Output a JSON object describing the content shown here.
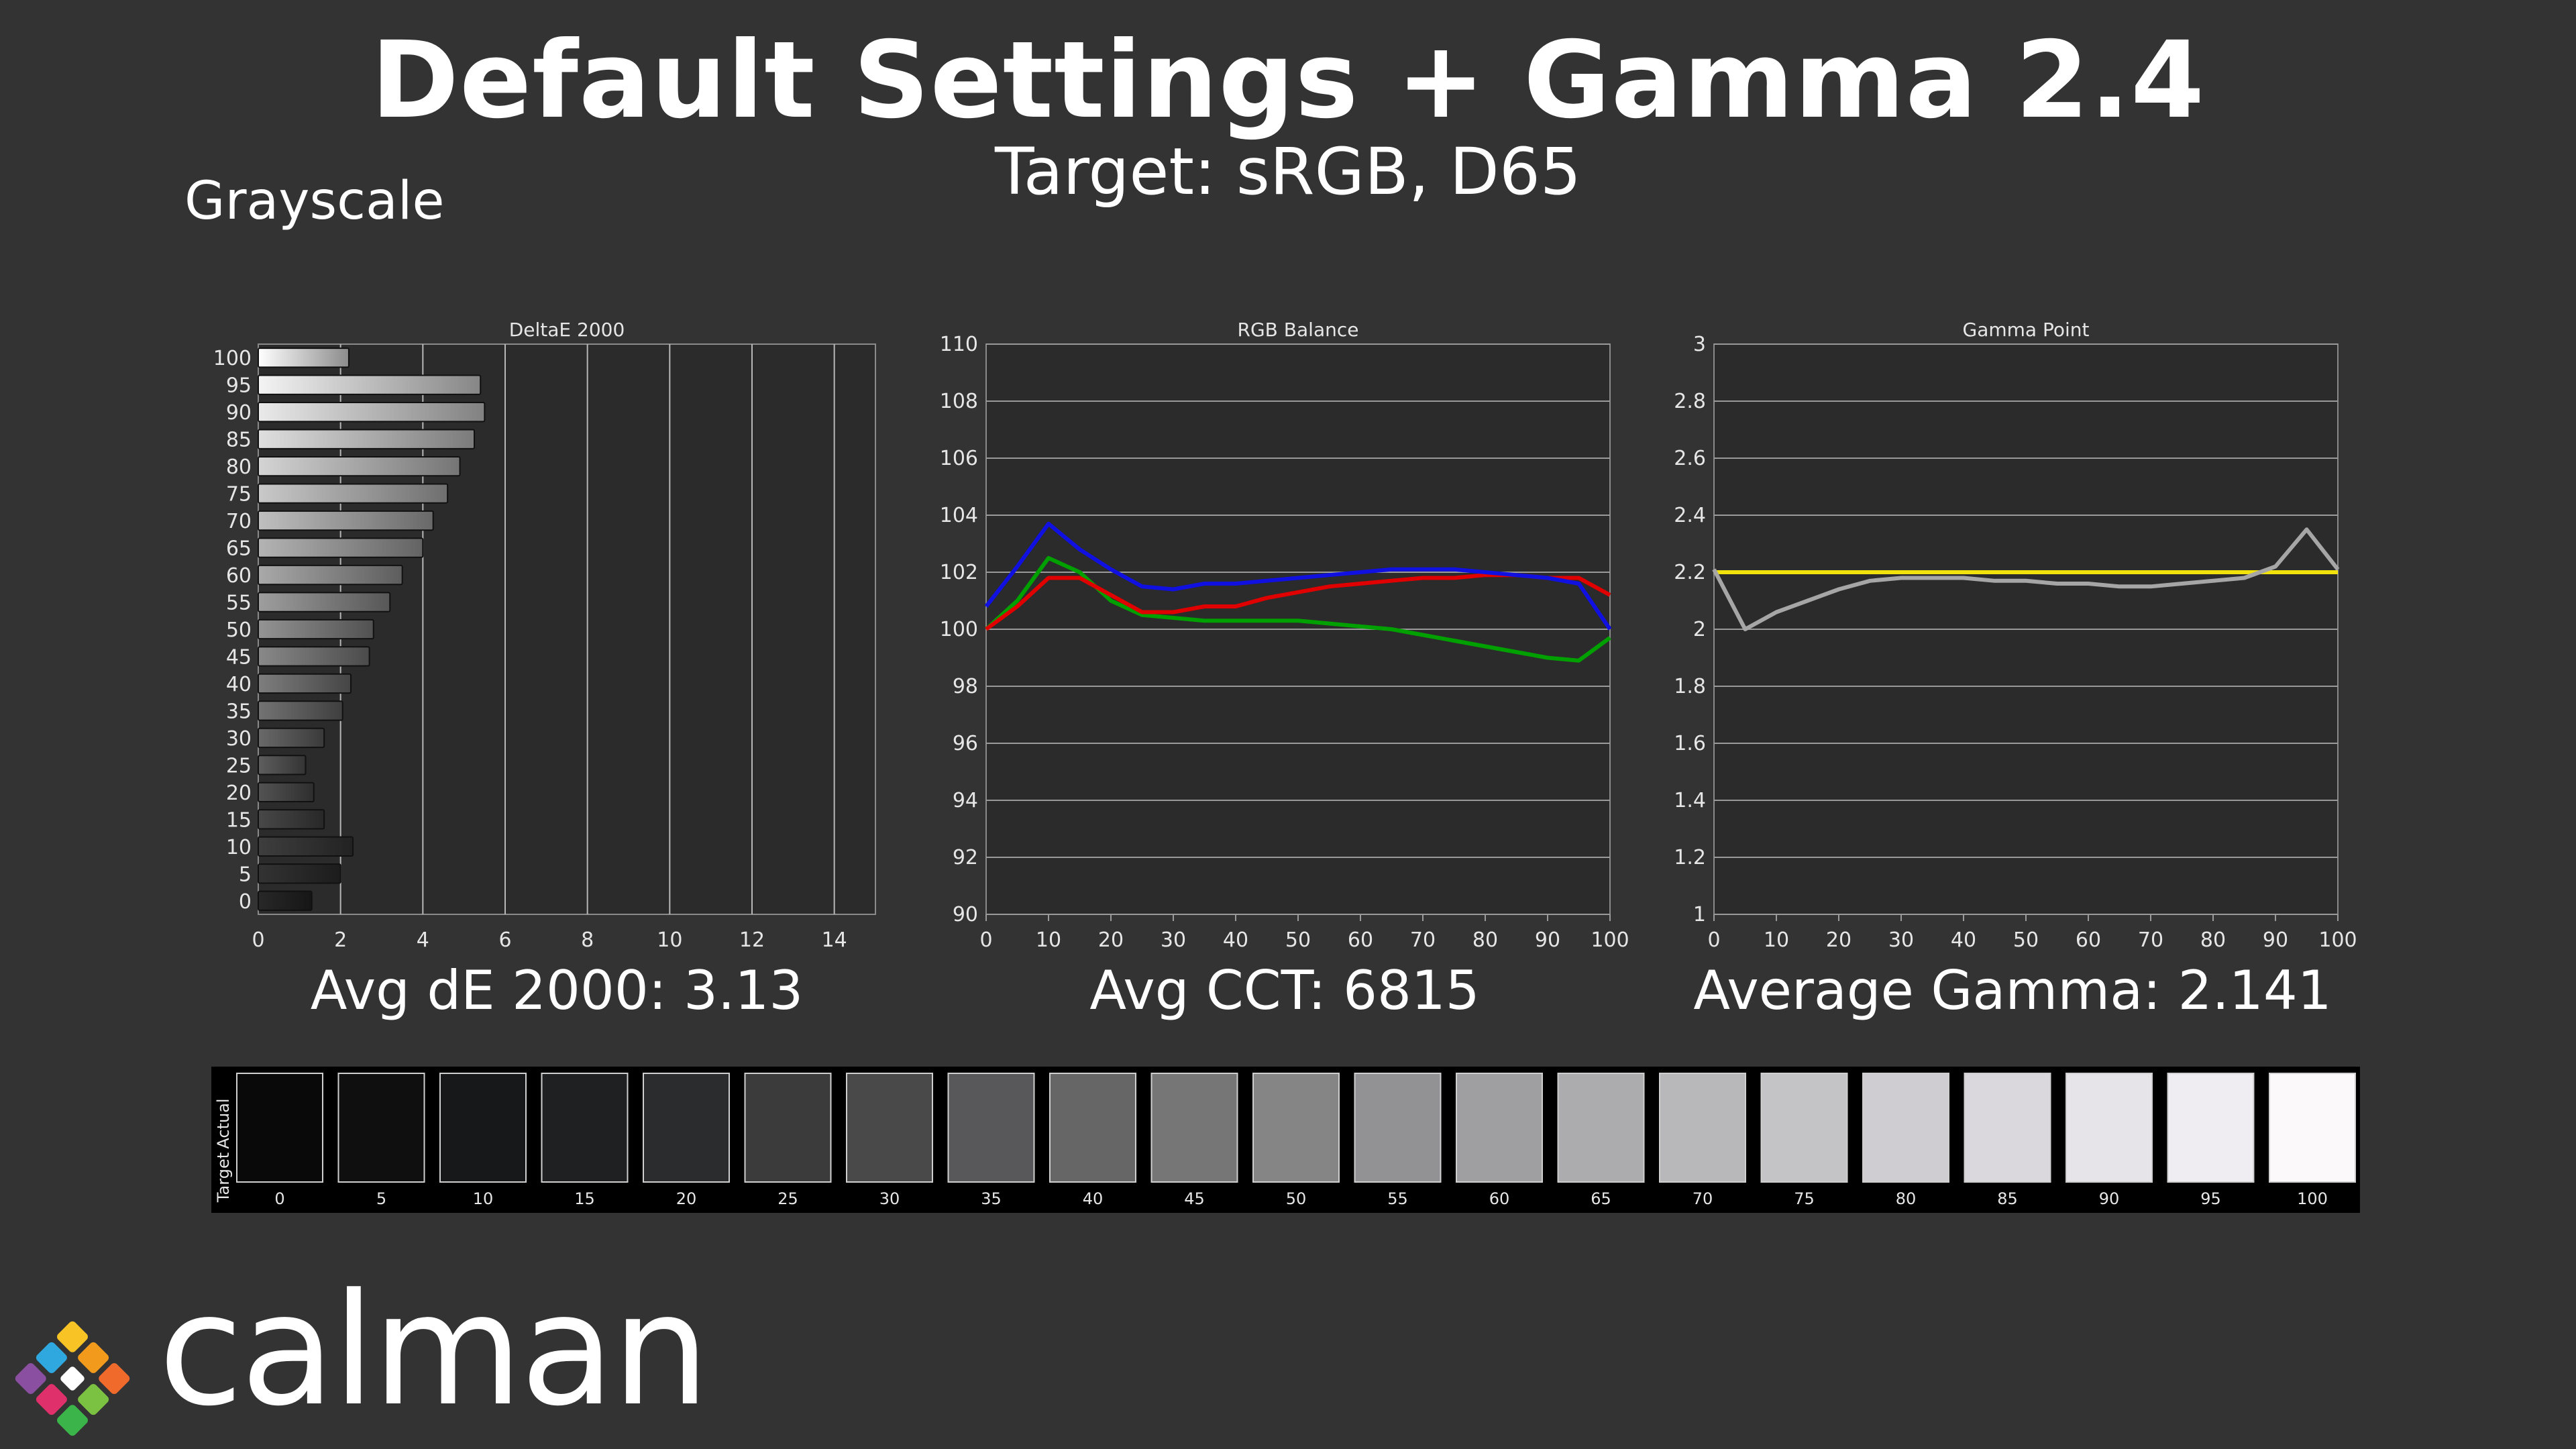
{
  "header": {
    "title": "Default Settings + Gamma 2.4",
    "subtitle": "Target: sRGB, D65",
    "section": "Grayscale"
  },
  "stats": {
    "avg_de": "Avg dE 2000: 3.13",
    "avg_cct": "Avg CCT: 6815",
    "avg_gamma": "Average Gamma: 2.141"
  },
  "brand": {
    "name": "calman"
  },
  "swatches": {
    "actual_label": "Actual",
    "target_label": "Target",
    "levels": [
      "0",
      "5",
      "10",
      "15",
      "20",
      "25",
      "30",
      "35",
      "40",
      "45",
      "50",
      "55",
      "60",
      "65",
      "70",
      "75",
      "80",
      "85",
      "90",
      "95",
      "100"
    ],
    "colors": [
      "#0a090a",
      "#0f0f10",
      "#17181a",
      "#1f2022",
      "#2b2c2e",
      "#3b3b3c",
      "#49494a",
      "#58585a",
      "#666667",
      "#767677",
      "#858586",
      "#929294",
      "#9f9fa1",
      "#acabae",
      "#b8b7ba",
      "#c4c3c6",
      "#cfcdd1",
      "#dad8dc",
      "#e6e3e9",
      "#efecf2",
      "#fbf9fa"
    ]
  },
  "chart_data": [
    {
      "type": "bar",
      "orientation": "horizontal",
      "title": "DeltaE 2000",
      "categories": [
        "0",
        "5",
        "10",
        "15",
        "20",
        "25",
        "30",
        "35",
        "40",
        "45",
        "50",
        "55",
        "60",
        "65",
        "70",
        "75",
        "80",
        "85",
        "90",
        "95",
        "100"
      ],
      "values": [
        1.3,
        2.0,
        2.3,
        1.6,
        1.35,
        1.15,
        1.6,
        2.05,
        2.25,
        2.7,
        2.8,
        3.2,
        3.5,
        4.0,
        4.25,
        4.6,
        4.9,
        5.25,
        5.5,
        5.4,
        2.2
      ],
      "x_ticks": [
        "0",
        "2",
        "4",
        "6",
        "8",
        "10",
        "12",
        "14"
      ],
      "xlim": [
        0,
        15
      ],
      "grid": true
    },
    {
      "type": "line",
      "title": "RGB Balance",
      "x": [
        0,
        5,
        10,
        15,
        20,
        25,
        30,
        35,
        40,
        45,
        50,
        55,
        60,
        65,
        70,
        75,
        80,
        85,
        90,
        95,
        100
      ],
      "x_ticks": [
        "0",
        "10",
        "20",
        "30",
        "40",
        "50",
        "60",
        "70",
        "80",
        "90",
        "100"
      ],
      "y_ticks": [
        "90",
        "92",
        "94",
        "96",
        "98",
        "100",
        "102",
        "104",
        "106",
        "108",
        "110"
      ],
      "ylim": [
        90,
        110
      ],
      "grid": true,
      "series": [
        {
          "color": "#00a000",
          "values": [
            100,
            101,
            102.5,
            102.0,
            101.0,
            100.5,
            100.4,
            100.3,
            100.3,
            100.3,
            100.3,
            100.2,
            100.1,
            100.0,
            99.8,
            99.6,
            99.4,
            99.2,
            99.0,
            98.9,
            99.7
          ]
        },
        {
          "color": "#e00000",
          "values": [
            100,
            100.8,
            101.8,
            101.8,
            101.2,
            100.6,
            100.6,
            100.8,
            100.8,
            101.1,
            101.3,
            101.5,
            101.6,
            101.7,
            101.8,
            101.8,
            101.9,
            101.9,
            101.8,
            101.8,
            101.2
          ]
        },
        {
          "color": "#1010e0",
          "values": [
            100.8,
            102.2,
            103.7,
            102.8,
            102.1,
            101.5,
            101.4,
            101.6,
            101.6,
            101.7,
            101.8,
            101.9,
            102.0,
            102.1,
            102.1,
            102.1,
            102.0,
            101.9,
            101.8,
            101.6,
            100.0
          ]
        }
      ]
    },
    {
      "type": "line",
      "title": "Gamma Point",
      "x": [
        0,
        5,
        10,
        15,
        20,
        25,
        30,
        35,
        40,
        45,
        50,
        55,
        60,
        65,
        70,
        75,
        80,
        85,
        90,
        95,
        100
      ],
      "x_ticks": [
        "0",
        "10",
        "20",
        "30",
        "40",
        "50",
        "60",
        "70",
        "80",
        "90",
        "100"
      ],
      "y_ticks": [
        "1",
        "1.2",
        "1.4",
        "1.6",
        "1.8",
        "2",
        "2.2",
        "2.4",
        "2.6",
        "2.8",
        "3"
      ],
      "ylim": [
        1,
        3
      ],
      "grid": true,
      "series": [
        {
          "color": "#f2e20c",
          "values": [
            2.2,
            2.2,
            2.2,
            2.2,
            2.2,
            2.2,
            2.2,
            2.2,
            2.2,
            2.2,
            2.2,
            2.2,
            2.2,
            2.2,
            2.2,
            2.2,
            2.2,
            2.2,
            2.2,
            2.2,
            2.2
          ]
        },
        {
          "color": "#a6a6a6",
          "values": [
            2.21,
            2.0,
            2.06,
            2.1,
            2.14,
            2.17,
            2.18,
            2.18,
            2.18,
            2.17,
            2.17,
            2.16,
            2.16,
            2.15,
            2.15,
            2.16,
            2.17,
            2.18,
            2.22,
            2.35,
            2.21
          ]
        }
      ]
    }
  ]
}
